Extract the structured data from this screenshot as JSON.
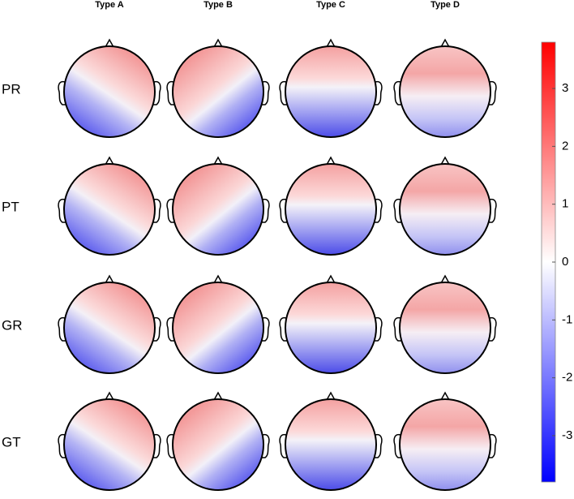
{
  "columns": [
    "Type A",
    "Type B",
    "Type C",
    "Type D"
  ],
  "rows": [
    "PR",
    "PT",
    "GR",
    "GT"
  ],
  "colorbar": {
    "range": [
      -3.8,
      3.8
    ],
    "ticks": [
      -3,
      -2,
      -1,
      0,
      1,
      2,
      3
    ]
  }
}
